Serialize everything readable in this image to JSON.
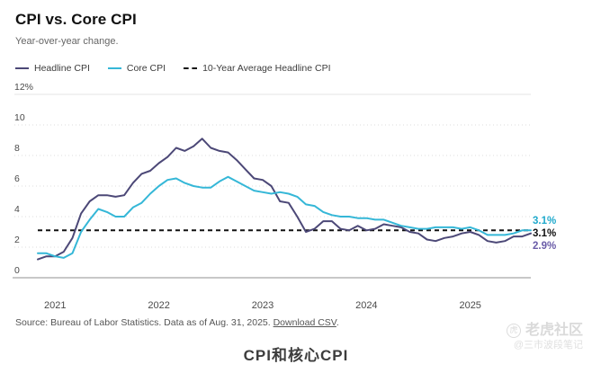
{
  "header": {
    "title": "CPI vs. Core CPI",
    "subtitle": "Year-over-year change."
  },
  "legend": [
    {
      "label": "Headline CPI",
      "color": "#4c4877",
      "style": "solid"
    },
    {
      "label": "Core CPI",
      "color": "#35b7d7",
      "style": "solid"
    },
    {
      "label": "10-Year Average Headline CPI",
      "color": "#111111",
      "style": "dashed"
    }
  ],
  "end_labels": [
    {
      "text": "3.1%",
      "color": "#1fa9cc",
      "series": "core-cpi"
    },
    {
      "text": "3.1%",
      "color": "#111111",
      "series": "10-year-average-headline-cpi"
    },
    {
      "text": "2.9%",
      "color": "#6a5ca8",
      "series": "headline-cpi"
    }
  ],
  "footer": {
    "source_prefix": "Source: Bureau of Labor Statistics. Data as of Aug. 31, 2025. ",
    "download_link": "Download CSV",
    "suffix": "."
  },
  "caption": "CPI和核心CPI",
  "watermark": {
    "brand": "老虎社区",
    "handle": "@三市波段笔记",
    "logo_glyph": "虎"
  },
  "chart_data": {
    "type": "line",
    "title": "CPI vs. Core CPI",
    "subtitle": "Year-over-year change.",
    "x_start": "2020-11",
    "x_end": "2025-08",
    "x_unit": "month",
    "ylim": [
      0,
      12
    ],
    "grid": "dotted-horizontal",
    "legend_position": "top-left",
    "y_ticks": [
      {
        "label": "12%",
        "value": 12
      },
      {
        "label": "10",
        "value": 10
      },
      {
        "label": "8",
        "value": 8
      },
      {
        "label": "6",
        "value": 6
      },
      {
        "label": "4",
        "value": 4
      },
      {
        "label": "2",
        "value": 2
      },
      {
        "label": "0",
        "value": 0
      }
    ],
    "x_ticks": [
      {
        "label": "2021",
        "month_index": 2
      },
      {
        "label": "2022",
        "month_index": 14
      },
      {
        "label": "2023",
        "month_index": 26
      },
      {
        "label": "2024",
        "month_index": 38
      },
      {
        "label": "2025",
        "month_index": 50
      }
    ],
    "average_line": {
      "label": "10-Year Average Headline CPI",
      "value": 3.1,
      "color": "#111111",
      "style": "dashed"
    },
    "series": [
      {
        "name": "Headline CPI",
        "color": "#4c4877",
        "end_value_label": "2.9%",
        "values": [
          1.2,
          1.4,
          1.4,
          1.7,
          2.6,
          4.2,
          5.0,
          5.4,
          5.4,
          5.3,
          5.4,
          6.2,
          6.8,
          7.0,
          7.5,
          7.9,
          8.5,
          8.3,
          8.6,
          9.1,
          8.5,
          8.3,
          8.2,
          7.7,
          7.1,
          6.5,
          6.4,
          6.0,
          5.0,
          4.9,
          4.0,
          3.0,
          3.2,
          3.7,
          3.7,
          3.2,
          3.1,
          3.4,
          3.1,
          3.2,
          3.5,
          3.4,
          3.3,
          3.0,
          2.9,
          2.5,
          2.4,
          2.6,
          2.7,
          2.9,
          3.0,
          2.8,
          2.4,
          2.3,
          2.4,
          2.7,
          2.7,
          2.9
        ]
      },
      {
        "name": "Core CPI",
        "color": "#35b7d7",
        "end_value_label": "3.1%",
        "values": [
          1.6,
          1.6,
          1.4,
          1.3,
          1.6,
          3.0,
          3.8,
          4.5,
          4.3,
          4.0,
          4.0,
          4.6,
          4.9,
          5.5,
          6.0,
          6.4,
          6.5,
          6.2,
          6.0,
          5.9,
          5.9,
          6.3,
          6.6,
          6.3,
          6.0,
          5.7,
          5.6,
          5.5,
          5.6,
          5.5,
          5.3,
          4.8,
          4.7,
          4.3,
          4.1,
          4.0,
          4.0,
          3.9,
          3.9,
          3.8,
          3.8,
          3.6,
          3.4,
          3.3,
          3.2,
          3.2,
          3.3,
          3.3,
          3.3,
          3.2,
          3.3,
          3.1,
          2.8,
          2.8,
          2.8,
          2.9,
          3.1,
          3.1
        ]
      }
    ]
  }
}
